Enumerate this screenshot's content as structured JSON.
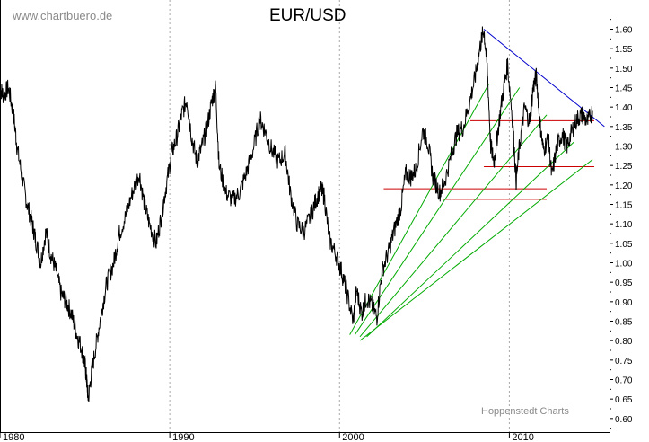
{
  "header": {
    "watermark": "www.chartbuero.de",
    "title": "EUR/USD",
    "credit": "Hoppenstedt Charts"
  },
  "chart_data": {
    "type": "line",
    "title": "EUR/USD",
    "xlabel": "",
    "ylabel": "",
    "x_ticks": [
      "1980",
      "1990",
      "2000",
      "2010"
    ],
    "y_ticks": [
      "0.60",
      "0.65",
      "0.70",
      "0.75",
      "0.80",
      "0.85",
      "0.90",
      "0.95",
      "1.00",
      "1.05",
      "1.10",
      "1.15",
      "1.20",
      "1.25",
      "1.30",
      "1.35",
      "1.40",
      "1.45",
      "1.50",
      "1.55",
      "1.60"
    ],
    "xlim": [
      1980,
      2015.9
    ],
    "ylim": [
      0.565,
      1.675
    ],
    "y_axis_side": "right",
    "grid": "vertical dotted at decades",
    "series": [
      {
        "color": "#000000",
        "points": [
          [
            1980.0,
            1.45
          ],
          [
            1980.2,
            1.43
          ],
          [
            1980.5,
            1.45
          ],
          [
            1980.8,
            1.38
          ],
          [
            1981.0,
            1.3
          ],
          [
            1981.3,
            1.22
          ],
          [
            1981.6,
            1.15
          ],
          [
            1981.9,
            1.1
          ],
          [
            1982.1,
            1.06
          ],
          [
            1982.4,
            1.0
          ],
          [
            1982.7,
            1.08
          ],
          [
            1983.0,
            1.02
          ],
          [
            1983.3,
            0.98
          ],
          [
            1983.6,
            0.92
          ],
          [
            1983.9,
            0.9
          ],
          [
            1984.2,
            0.87
          ],
          [
            1984.5,
            0.82
          ],
          [
            1984.8,
            0.78
          ],
          [
            1985.0,
            0.74
          ],
          [
            1985.1,
            0.7
          ],
          [
            1985.2,
            0.65
          ],
          [
            1985.4,
            0.72
          ],
          [
            1985.7,
            0.8
          ],
          [
            1986.0,
            0.88
          ],
          [
            1986.3,
            0.95
          ],
          [
            1986.7,
            1.0
          ],
          [
            1987.0,
            1.07
          ],
          [
            1987.4,
            1.12
          ],
          [
            1987.8,
            1.18
          ],
          [
            1988.2,
            1.23
          ],
          [
            1988.5,
            1.15
          ],
          [
            1988.8,
            1.1
          ],
          [
            1989.2,
            1.05
          ],
          [
            1989.5,
            1.12
          ],
          [
            1989.8,
            1.2
          ],
          [
            1990.1,
            1.28
          ],
          [
            1990.4,
            1.32
          ],
          [
            1990.7,
            1.38
          ],
          [
            1991.0,
            1.42
          ],
          [
            1991.3,
            1.32
          ],
          [
            1991.6,
            1.26
          ],
          [
            1991.9,
            1.3
          ],
          [
            1992.2,
            1.35
          ],
          [
            1992.5,
            1.42
          ],
          [
            1992.7,
            1.45
          ],
          [
            1992.9,
            1.25
          ],
          [
            1993.3,
            1.18
          ],
          [
            1993.7,
            1.16
          ],
          [
            1994.1,
            1.18
          ],
          [
            1994.5,
            1.23
          ],
          [
            1994.9,
            1.29
          ],
          [
            1995.3,
            1.37
          ],
          [
            1995.6,
            1.34
          ],
          [
            1996.0,
            1.29
          ],
          [
            1996.4,
            1.26
          ],
          [
            1996.8,
            1.28
          ],
          [
            1997.1,
            1.18
          ],
          [
            1997.5,
            1.1
          ],
          [
            1997.9,
            1.08
          ],
          [
            1998.3,
            1.12
          ],
          [
            1998.6,
            1.16
          ],
          [
            1998.9,
            1.19
          ],
          [
            1999.1,
            1.17
          ],
          [
            1999.4,
            1.06
          ],
          [
            1999.8,
            1.02
          ],
          [
            2000.1,
            0.98
          ],
          [
            2000.4,
            0.93
          ],
          [
            2000.8,
            0.85
          ],
          [
            2001.0,
            0.93
          ],
          [
            2001.3,
            0.87
          ],
          [
            2001.6,
            0.91
          ],
          [
            2001.9,
            0.89
          ],
          [
            2002.2,
            0.86
          ],
          [
            2002.5,
            0.98
          ],
          [
            2002.9,
            1.03
          ],
          [
            2003.2,
            1.08
          ],
          [
            2003.6,
            1.14
          ],
          [
            2003.9,
            1.23
          ],
          [
            2004.2,
            1.22
          ],
          [
            2004.5,
            1.24
          ],
          [
            2004.9,
            1.34
          ],
          [
            2005.2,
            1.31
          ],
          [
            2005.5,
            1.22
          ],
          [
            2005.9,
            1.18
          ],
          [
            2006.2,
            1.21
          ],
          [
            2006.6,
            1.28
          ],
          [
            2006.9,
            1.33
          ],
          [
            2007.3,
            1.35
          ],
          [
            2007.7,
            1.42
          ],
          [
            2008.0,
            1.48
          ],
          [
            2008.3,
            1.56
          ],
          [
            2008.5,
            1.6
          ],
          [
            2008.7,
            1.5
          ],
          [
            2008.9,
            1.3
          ],
          [
            2009.1,
            1.26
          ],
          [
            2009.3,
            1.33
          ],
          [
            2009.6,
            1.43
          ],
          [
            2009.9,
            1.51
          ],
          [
            2010.2,
            1.36
          ],
          [
            2010.4,
            1.21
          ],
          [
            2010.6,
            1.3
          ],
          [
            2010.9,
            1.4
          ],
          [
            2011.2,
            1.36
          ],
          [
            2011.4,
            1.45
          ],
          [
            2011.6,
            1.48
          ],
          [
            2011.8,
            1.36
          ],
          [
            2012.0,
            1.29
          ],
          [
            2012.3,
            1.32
          ],
          [
            2012.5,
            1.22
          ],
          [
            2012.8,
            1.3
          ],
          [
            2013.1,
            1.33
          ],
          [
            2013.4,
            1.3
          ],
          [
            2013.7,
            1.34
          ],
          [
            2014.0,
            1.37
          ],
          [
            2014.3,
            1.38
          ],
          [
            2014.6,
            1.36
          ],
          [
            2014.9,
            1.39
          ]
        ]
      }
    ],
    "trendlines": [
      {
        "color": "#cc0000",
        "from": [
          2007.7,
          1.365
        ],
        "to": [
          2015.0,
          1.365
        ]
      },
      {
        "color": "#cc0000",
        "from": [
          2008.5,
          1.247
        ],
        "to": [
          2015.0,
          1.247
        ]
      },
      {
        "color": "#cc0000",
        "from": [
          2002.6,
          1.19
        ],
        "to": [
          2012.2,
          1.19
        ]
      },
      {
        "color": "#cc0000",
        "from": [
          2006.1,
          1.163
        ],
        "to": [
          2012.2,
          1.163
        ]
      },
      {
        "color": "#0000cc",
        "from": [
          2008.5,
          1.6
        ],
        "to": [
          2015.6,
          1.35
        ]
      },
      {
        "color": "#00aa00",
        "from": [
          2000.6,
          0.815
        ],
        "to": [
          2008.8,
          1.46
        ]
      },
      {
        "color": "#00aa00",
        "from": [
          2000.9,
          0.815
        ],
        "to": [
          2010.6,
          1.45
        ]
      },
      {
        "color": "#00aa00",
        "from": [
          2001.2,
          0.81
        ],
        "to": [
          2012.2,
          1.38
        ]
      },
      {
        "color": "#00aa00",
        "from": [
          2001.6,
          0.81
        ],
        "to": [
          2013.8,
          1.31
        ]
      },
      {
        "color": "#00aa00",
        "from": [
          2001.2,
          0.8
        ],
        "to": [
          2014.9,
          1.265
        ]
      }
    ]
  }
}
